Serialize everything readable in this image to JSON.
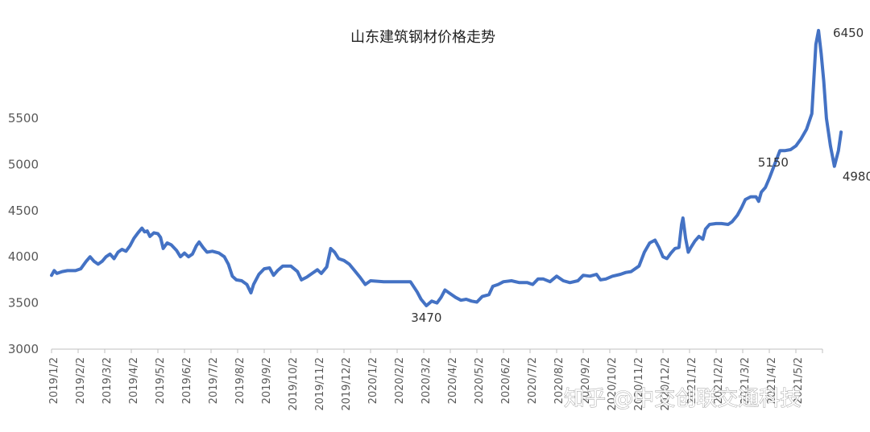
{
  "chart_data": {
    "type": "line",
    "title": "山东建筑钢材价格走势",
    "xlabel": "",
    "ylabel": "",
    "ylim": [
      3000,
      6000
    ],
    "yticks": [
      3000,
      3500,
      4000,
      4500,
      5000,
      5500
    ],
    "grid": false,
    "legend": "none",
    "line_color": "#4472C4",
    "xticks": [
      "2019/1/2",
      "2019/2/2",
      "2019/3/2",
      "2019/4/2",
      "2019/5/2",
      "2019/6/2",
      "2019/7/2",
      "2019/8/2",
      "2019/9/2",
      "2019/10/2",
      "2019/11/2",
      "2019/12/2",
      "2020/1/2",
      "2020/2/2",
      "2020/3/2",
      "2020/4/2",
      "2020/5/2",
      "2020/6/2",
      "2020/7/2",
      "2020/8/2",
      "2020/9/2",
      "2020/10/2",
      "2020/11/2",
      "2020/12/2",
      "2021/1/2",
      "2021/2/2",
      "2021/3/2",
      "2021/4/2",
      "2021/5/2"
    ],
    "series": [
      {
        "values": [
          [
            0,
            3800
          ],
          [
            0.1,
            3850
          ],
          [
            0.2,
            3820
          ],
          [
            0.4,
            3840
          ],
          [
            0.6,
            3850
          ],
          [
            0.9,
            3850
          ],
          [
            1.1,
            3870
          ],
          [
            1.3,
            3950
          ],
          [
            1.45,
            4000
          ],
          [
            1.6,
            3950
          ],
          [
            1.75,
            3920
          ],
          [
            1.9,
            3950
          ],
          [
            2.05,
            4000
          ],
          [
            2.2,
            4030
          ],
          [
            2.35,
            3980
          ],
          [
            2.5,
            4050
          ],
          [
            2.65,
            4080
          ],
          [
            2.8,
            4060
          ],
          [
            2.95,
            4120
          ],
          [
            3.1,
            4200
          ],
          [
            3.25,
            4260
          ],
          [
            3.4,
            4310
          ],
          [
            3.5,
            4270
          ],
          [
            3.6,
            4280
          ],
          [
            3.7,
            4220
          ],
          [
            3.85,
            4260
          ],
          [
            4.0,
            4250
          ],
          [
            4.1,
            4210
          ],
          [
            4.2,
            4090
          ],
          [
            4.35,
            4150
          ],
          [
            4.5,
            4130
          ],
          [
            4.7,
            4070
          ],
          [
            4.85,
            4000
          ],
          [
            5.0,
            4040
          ],
          [
            5.15,
            4000
          ],
          [
            5.3,
            4030
          ],
          [
            5.45,
            4120
          ],
          [
            5.55,
            4160
          ],
          [
            5.7,
            4100
          ],
          [
            5.85,
            4050
          ],
          [
            6.05,
            4060
          ],
          [
            6.3,
            4040
          ],
          [
            6.5,
            4000
          ],
          [
            6.65,
            3920
          ],
          [
            6.8,
            3790
          ],
          [
            6.95,
            3750
          ],
          [
            7.15,
            3740
          ],
          [
            7.35,
            3700
          ],
          [
            7.5,
            3610
          ],
          [
            7.6,
            3700
          ],
          [
            7.8,
            3810
          ],
          [
            8.0,
            3870
          ],
          [
            8.2,
            3880
          ],
          [
            8.35,
            3800
          ],
          [
            8.5,
            3850
          ],
          [
            8.7,
            3900
          ],
          [
            9.0,
            3900
          ],
          [
            9.25,
            3840
          ],
          [
            9.4,
            3750
          ],
          [
            9.6,
            3780
          ],
          [
            9.8,
            3820
          ],
          [
            10.0,
            3860
          ],
          [
            10.15,
            3820
          ],
          [
            10.35,
            3890
          ],
          [
            10.5,
            4090
          ],
          [
            10.65,
            4050
          ],
          [
            10.8,
            3980
          ],
          [
            11.0,
            3960
          ],
          [
            11.2,
            3920
          ],
          [
            11.4,
            3850
          ],
          [
            11.6,
            3780
          ],
          [
            11.8,
            3700
          ],
          [
            12.0,
            3740
          ],
          [
            12.5,
            3730
          ],
          [
            13.0,
            3730
          ],
          [
            13.5,
            3730
          ],
          [
            13.75,
            3620
          ],
          [
            13.9,
            3540
          ],
          [
            14.1,
            3470
          ],
          [
            14.3,
            3520
          ],
          [
            14.5,
            3500
          ],
          [
            14.65,
            3560
          ],
          [
            14.8,
            3640
          ],
          [
            15.0,
            3600
          ],
          [
            15.2,
            3560
          ],
          [
            15.4,
            3530
          ],
          [
            15.6,
            3540
          ],
          [
            15.8,
            3520
          ],
          [
            16.0,
            3510
          ],
          [
            16.2,
            3570
          ],
          [
            16.45,
            3590
          ],
          [
            16.6,
            3680
          ],
          [
            16.8,
            3700
          ],
          [
            17.0,
            3730
          ],
          [
            17.3,
            3740
          ],
          [
            17.6,
            3720
          ],
          [
            17.9,
            3720
          ],
          [
            18.1,
            3700
          ],
          [
            18.3,
            3760
          ],
          [
            18.5,
            3760
          ],
          [
            18.75,
            3730
          ],
          [
            19.0,
            3790
          ],
          [
            19.25,
            3740
          ],
          [
            19.5,
            3720
          ],
          [
            19.8,
            3740
          ],
          [
            20.0,
            3800
          ],
          [
            20.25,
            3790
          ],
          [
            20.5,
            3810
          ],
          [
            20.65,
            3750
          ],
          [
            20.85,
            3760
          ],
          [
            21.1,
            3790
          ],
          [
            21.4,
            3810
          ],
          [
            21.6,
            3830
          ],
          [
            21.8,
            3840
          ],
          [
            22.1,
            3900
          ],
          [
            22.3,
            4050
          ],
          [
            22.5,
            4150
          ],
          [
            22.7,
            4180
          ],
          [
            22.85,
            4100
          ],
          [
            23.0,
            4000
          ],
          [
            23.15,
            3980
          ],
          [
            23.3,
            4040
          ],
          [
            23.45,
            4090
          ],
          [
            23.6,
            4100
          ],
          [
            23.7,
            4350
          ],
          [
            23.75,
            4420
          ],
          [
            23.85,
            4200
          ],
          [
            23.95,
            4050
          ],
          [
            24.05,
            4100
          ],
          [
            24.2,
            4170
          ],
          [
            24.35,
            4220
          ],
          [
            24.5,
            4190
          ],
          [
            24.6,
            4300
          ],
          [
            24.75,
            4350
          ],
          [
            25.0,
            4360
          ],
          [
            25.2,
            4360
          ],
          [
            25.45,
            4350
          ],
          [
            25.6,
            4380
          ],
          [
            25.8,
            4450
          ],
          [
            25.95,
            4530
          ],
          [
            26.1,
            4620
          ],
          [
            26.3,
            4650
          ],
          [
            26.5,
            4650
          ],
          [
            26.6,
            4600
          ],
          [
            26.7,
            4700
          ],
          [
            26.85,
            4750
          ],
          [
            27.0,
            4850
          ],
          [
            27.2,
            5000
          ],
          [
            27.4,
            5150
          ],
          [
            27.6,
            5150
          ],
          [
            27.8,
            5160
          ],
          [
            28.0,
            5200
          ],
          [
            28.2,
            5280
          ],
          [
            28.4,
            5380
          ],
          [
            28.6,
            5550
          ],
          [
            28.75,
            6300
          ],
          [
            28.85,
            6450
          ],
          [
            28.95,
            6200
          ],
          [
            29.05,
            5900
          ],
          [
            29.15,
            5500
          ],
          [
            29.3,
            5200
          ],
          [
            29.45,
            4980
          ],
          [
            29.6,
            5150
          ],
          [
            29.7,
            5350
          ]
        ]
      }
    ],
    "annotations": [
      {
        "text": "6450",
        "x": 28.85,
        "y": 6450
      },
      {
        "text": "5150",
        "x": 27.6,
        "y": 5150
      },
      {
        "text": "4980",
        "x": 29.45,
        "y": 4980
      },
      {
        "text": "3470",
        "x": 14.1,
        "y": 3470
      }
    ],
    "watermark": "知乎 @中交创联交通科技"
  }
}
